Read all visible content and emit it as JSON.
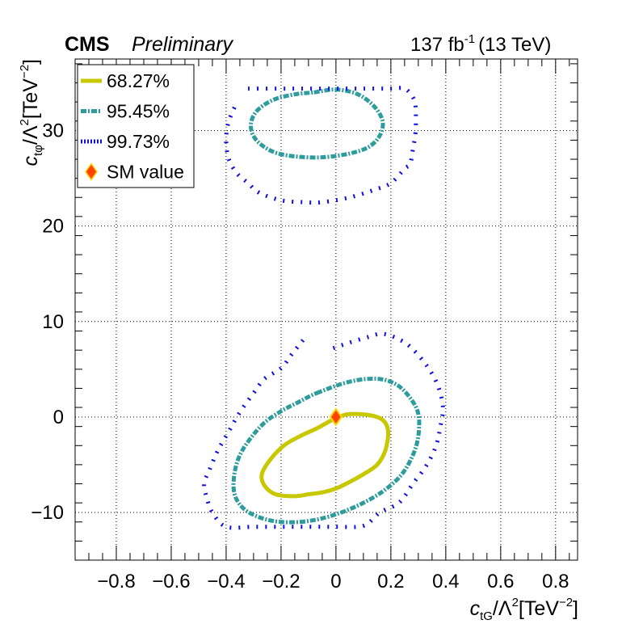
{
  "header": {
    "experiment": "CMS",
    "status": "Preliminary",
    "lumi": "137 fb",
    "lumi_exp": "-1",
    "energy": "(13 TeV)"
  },
  "chart_data": {
    "type": "contour",
    "xlabel": {
      "main": "c",
      "sub": "tG",
      "rest": "/Λ",
      "sup1": "2",
      "unit": "[TeV",
      "sup2": "−2",
      "close": "]"
    },
    "ylabel": {
      "main": "c",
      "sub": "tφ",
      "rest": "/Λ",
      "sup1": "2",
      "unit": "[TeV",
      "sup2": "−2",
      "close": "]"
    },
    "xlim": [
      -0.95,
      0.88
    ],
    "ylim": [
      -15,
      37.5
    ],
    "xticks": [
      -0.8,
      -0.6,
      -0.4,
      -0.2,
      0,
      0.2,
      0.4,
      0.6,
      0.8
    ],
    "xtick_labels": [
      "−0.8",
      "−0.6",
      "−0.4",
      "−0.2",
      "0",
      "0.2",
      "0.4",
      "0.6",
      "0.8"
    ],
    "yticks": [
      -10,
      0,
      10,
      20,
      30
    ],
    "ytick_labels": [
      "−10",
      "0",
      "10",
      "20",
      "30"
    ],
    "grid": true,
    "legend": {
      "placement": "top-left",
      "entries": [
        {
          "label": "68.27%",
          "color": "#c8c800",
          "style": "solid"
        },
        {
          "label": "95.45%",
          "color": "#2e9c9c",
          "style": "dash-dot"
        },
        {
          "label": "99.73%",
          "color": "#1010e0",
          "style": "dotted"
        },
        {
          "label": "SM value",
          "color": "#ff4400",
          "style": "marker"
        }
      ]
    },
    "series": [
      {
        "name": "68.27%",
        "color": "#c8c800",
        "closed": true,
        "points": [
          [
            0.01,
            0.0
          ],
          [
            0.05,
            0.3
          ],
          [
            0.12,
            0.2
          ],
          [
            0.17,
            -0.3
          ],
          [
            0.19,
            -1.5
          ],
          [
            0.18,
            -3.5
          ],
          [
            0.15,
            -5.0
          ],
          [
            0.1,
            -6.0
          ],
          [
            0.05,
            -6.8
          ],
          [
            0.0,
            -7.5
          ],
          [
            -0.05,
            -7.9
          ],
          [
            -0.1,
            -8.1
          ],
          [
            -0.15,
            -8.3
          ],
          [
            -0.22,
            -8.1
          ],
          [
            -0.26,
            -7.2
          ],
          [
            -0.27,
            -6.0
          ],
          [
            -0.24,
            -4.5
          ],
          [
            -0.19,
            -3.0
          ],
          [
            -0.13,
            -2.0
          ],
          [
            -0.07,
            -1.2
          ],
          [
            -0.02,
            -0.4
          ]
        ]
      },
      {
        "name": "95.45%",
        "color": "#2e9c9c",
        "closed": true,
        "points": [
          [
            -0.07,
            2.5
          ],
          [
            0.05,
            3.7
          ],
          [
            0.15,
            4.0
          ],
          [
            0.22,
            3.4
          ],
          [
            0.27,
            2.0
          ],
          [
            0.3,
            0.3
          ],
          [
            0.3,
            -2.0
          ],
          [
            0.28,
            -4.0
          ],
          [
            0.24,
            -6.0
          ],
          [
            0.18,
            -7.6
          ],
          [
            0.1,
            -9.0
          ],
          [
            0.0,
            -10.2
          ],
          [
            -0.1,
            -10.9
          ],
          [
            -0.2,
            -11.0
          ],
          [
            -0.28,
            -10.5
          ],
          [
            -0.34,
            -9.5
          ],
          [
            -0.37,
            -8.0
          ],
          [
            -0.37,
            -6.0
          ],
          [
            -0.35,
            -4.0
          ],
          [
            -0.31,
            -2.2
          ],
          [
            -0.26,
            -0.6
          ],
          [
            -0.2,
            0.6
          ],
          [
            -0.14,
            1.5
          ]
        ]
      },
      {
        "name": "95.45%",
        "color": "#2e9c9c",
        "closed": true,
        "points": [
          [
            -0.08,
            34.0
          ],
          [
            0.0,
            34.3
          ],
          [
            0.08,
            33.8
          ],
          [
            0.14,
            32.5
          ],
          [
            0.17,
            31.0
          ],
          [
            0.16,
            29.5
          ],
          [
            0.12,
            28.3
          ],
          [
            0.05,
            27.6
          ],
          [
            -0.05,
            27.2
          ],
          [
            -0.15,
            27.3
          ],
          [
            -0.23,
            27.8
          ],
          [
            -0.29,
            29.0
          ],
          [
            -0.31,
            30.5
          ],
          [
            -0.29,
            32.0
          ],
          [
            -0.23,
            33.2
          ],
          [
            -0.15,
            33.8
          ]
        ]
      },
      {
        "name": "99.73%",
        "color": "#1010e0",
        "closed": false,
        "points": [
          [
            -0.01,
            7.2
          ],
          [
            0.05,
            7.8
          ],
          [
            0.12,
            8.4
          ],
          [
            0.16,
            8.7
          ],
          [
            0.2,
            8.5
          ],
          [
            0.25,
            7.8
          ],
          [
            0.29,
            6.8
          ],
          [
            0.33,
            5.4
          ],
          [
            0.36,
            4.0
          ],
          [
            0.38,
            2.5
          ],
          [
            0.39,
            0.8
          ],
          [
            0.38,
            -1.0
          ],
          [
            0.37,
            -2.5
          ],
          [
            0.35,
            -4.0
          ],
          [
            0.32,
            -5.5
          ],
          [
            0.28,
            -7.0
          ],
          [
            0.25,
            -8.3
          ],
          [
            0.22,
            -9.2
          ],
          [
            0.16,
            -10.0
          ],
          [
            0.1,
            -11.4
          ],
          [
            0.0,
            -11.5
          ],
          [
            -0.1,
            -11.5
          ],
          [
            -0.2,
            -11.5
          ],
          [
            -0.3,
            -11.5
          ],
          [
            -0.4,
            -11.5
          ],
          [
            -0.45,
            -10.0
          ],
          [
            -0.47,
            -8.5
          ],
          [
            -0.48,
            -7.0
          ],
          [
            -0.46,
            -5.5
          ],
          [
            -0.43,
            -3.5
          ],
          [
            -0.39,
            -1.5
          ],
          [
            -0.35,
            0.5
          ],
          [
            -0.3,
            2.5
          ],
          [
            -0.26,
            4.0
          ],
          [
            -0.2,
            5.1
          ],
          [
            -0.16,
            6.6
          ],
          [
            -0.11,
            8.4
          ]
        ]
      },
      {
        "name": "99.73%",
        "color": "#1010e0",
        "closed": false,
        "points": [
          [
            -0.32,
            34.4
          ],
          [
            -0.2,
            34.4
          ],
          [
            -0.1,
            34.4
          ],
          [
            0.0,
            34.4
          ],
          [
            0.1,
            34.4
          ],
          [
            0.2,
            34.4
          ],
          [
            0.25,
            34.4
          ],
          [
            0.28,
            33.5
          ],
          [
            0.29,
            32.5
          ],
          [
            0.29,
            30.0
          ],
          [
            0.28,
            28.0
          ],
          [
            0.27,
            26.5
          ],
          [
            0.25,
            26.0
          ],
          [
            0.2,
            24.5
          ],
          [
            0.14,
            23.8
          ],
          [
            0.05,
            23.0
          ],
          [
            -0.05,
            22.5
          ],
          [
            -0.12,
            22.5
          ],
          [
            -0.2,
            22.7
          ],
          [
            -0.28,
            23.5
          ],
          [
            -0.32,
            24.5
          ],
          [
            -0.36,
            25.5
          ],
          [
            -0.39,
            27.0
          ],
          [
            -0.4,
            29.0
          ],
          [
            -0.39,
            31.0
          ],
          [
            -0.36,
            33.0
          ]
        ]
      }
    ],
    "sm_point": {
      "x": 0,
      "y": 0,
      "color": "#ff4400"
    }
  }
}
